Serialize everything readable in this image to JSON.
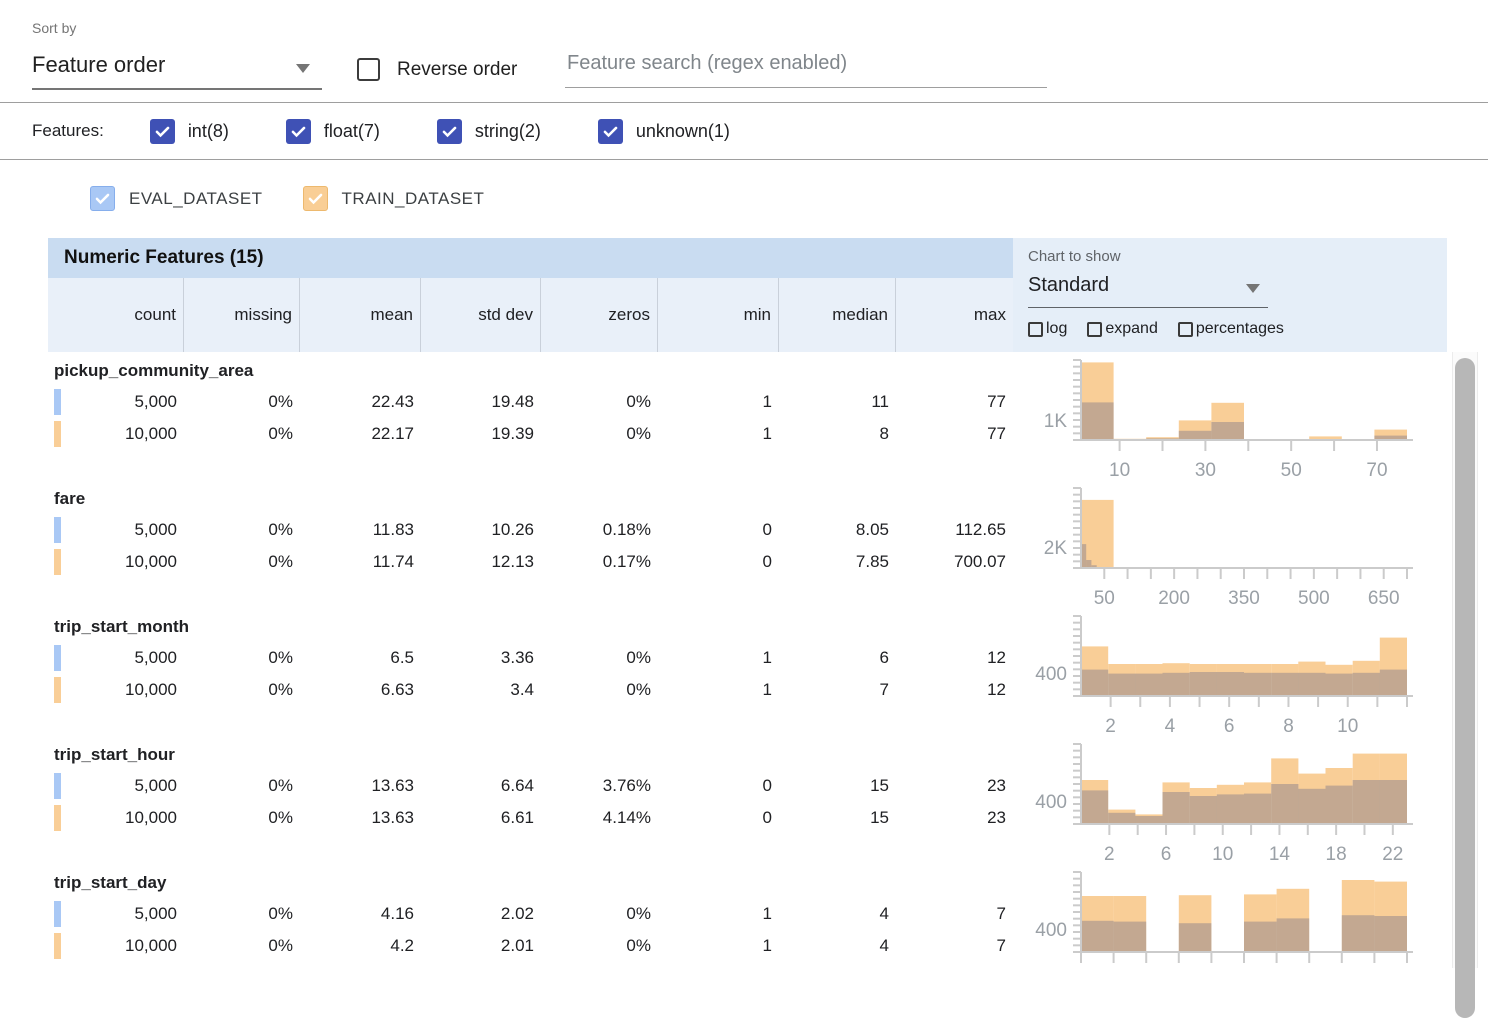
{
  "sort_bar": {
    "sort_by_label": "Sort by",
    "sort_value": "Feature order",
    "reverse_label": "Reverse order",
    "search_placeholder": "Feature search (regex enabled)"
  },
  "features_bar": {
    "label": "Features:",
    "types": [
      {
        "label": "int(8)",
        "checked": true
      },
      {
        "label": "float(7)",
        "checked": true
      },
      {
        "label": "string(2)",
        "checked": true
      },
      {
        "label": "unknown(1)",
        "checked": true
      }
    ]
  },
  "datasets": [
    {
      "name": "EVAL_DATASET",
      "color": "#A9C8F5",
      "checked": true
    },
    {
      "name": "TRAIN_DATASET",
      "color": "#F9CE97",
      "checked": true
    }
  ],
  "table": {
    "title": "Numeric Features (15)",
    "columns": [
      "count",
      "missing",
      "mean",
      "std dev",
      "zeros",
      "min",
      "median",
      "max"
    ]
  },
  "chart_controls": {
    "label": "Chart to show",
    "value": "Standard",
    "checkboxes": [
      {
        "label": "log",
        "checked": false
      },
      {
        "label": "expand",
        "checked": false
      },
      {
        "label": "percentages",
        "checked": false
      }
    ]
  },
  "features": [
    {
      "name": "pickup_community_area",
      "eval": [
        "5,000",
        "0%",
        "22.43",
        "19.48",
        "0%",
        "1",
        "11",
        "77"
      ],
      "train": [
        "10,000",
        "0%",
        "22.17",
        "19.39",
        "0%",
        "1",
        "8",
        "77"
      ]
    },
    {
      "name": "fare",
      "eval": [
        "5,000",
        "0%",
        "11.83",
        "10.26",
        "0.18%",
        "0",
        "8.05",
        "112.65"
      ],
      "train": [
        "10,000",
        "0%",
        "11.74",
        "12.13",
        "0.17%",
        "0",
        "7.85",
        "700.07"
      ]
    },
    {
      "name": "trip_start_month",
      "eval": [
        "5,000",
        "0%",
        "6.5",
        "3.36",
        "0%",
        "1",
        "6",
        "12"
      ],
      "train": [
        "10,000",
        "0%",
        "6.63",
        "3.4",
        "0%",
        "1",
        "7",
        "12"
      ]
    },
    {
      "name": "trip_start_hour",
      "eval": [
        "5,000",
        "0%",
        "13.63",
        "6.64",
        "3.76%",
        "0",
        "15",
        "23"
      ],
      "train": [
        "10,000",
        "0%",
        "13.63",
        "6.61",
        "4.14%",
        "0",
        "15",
        "23"
      ]
    },
    {
      "name": "trip_start_day",
      "eval": [
        "5,000",
        "0%",
        "4.16",
        "2.02",
        "0%",
        "1",
        "4",
        "7"
      ],
      "train": [
        "10,000",
        "0%",
        "4.2",
        "2.01",
        "0%",
        "1",
        "4",
        "7"
      ]
    }
  ],
  "chart_data": [
    {
      "feature": "pickup_community_area",
      "type": "bar",
      "x_range": [
        1,
        77
      ],
      "y_max": 4000,
      "y_axis_label": {
        "text": "1K",
        "value": 1000
      },
      "x_ticks": [
        10,
        20,
        30,
        40,
        50,
        60,
        70
      ],
      "x_tick_labels": [
        [
          10,
          "10"
        ],
        [
          30,
          "30"
        ],
        [
          50,
          "50"
        ],
        [
          70,
          "70"
        ]
      ],
      "series": [
        {
          "name": "TRAIN_DATASET",
          "color": "#F9CE97",
          "bin_start": 1,
          "bin_width": 7.6,
          "counts": [
            3880,
            60,
            140,
            980,
            1860,
            50,
            50,
            180,
            50,
            520
          ]
        },
        {
          "name": "EVAL_DATASET",
          "color": "rgba(128,122,138,0.45)",
          "bin_start": 1,
          "bin_width": 7.6,
          "counts": [
            1880,
            40,
            80,
            460,
            900,
            30,
            20,
            50,
            20,
            220
          ]
        }
      ]
    },
    {
      "feature": "fare",
      "type": "bar",
      "x_range": [
        0,
        700
      ],
      "y_max": 7700,
      "y_axis_label": {
        "text": "2K",
        "value": 2000
      },
      "x_ticks": [
        50,
        100,
        150,
        200,
        250,
        300,
        350,
        400,
        450,
        500,
        550,
        600,
        650,
        700
      ],
      "x_tick_labels": [
        [
          50,
          "50"
        ],
        [
          200,
          "200"
        ],
        [
          350,
          "350"
        ],
        [
          500,
          "500"
        ],
        [
          650,
          "650"
        ]
      ],
      "series": [
        {
          "name": "TRAIN_DATASET",
          "color": "#F9CE97",
          "bin_start": 0,
          "bin_width": 70,
          "counts": [
            6550,
            30,
            30,
            30,
            30,
            30,
            30,
            30,
            30,
            30
          ]
        },
        {
          "name": "EVAL_DATASET",
          "color": "rgba(128,122,138,0.45)",
          "bin_start": 0,
          "bin_width": 11.265,
          "counts": [
            2300,
            770,
            270,
            90,
            45,
            25,
            25,
            25,
            25,
            25
          ]
        }
      ]
    },
    {
      "feature": "trip_start_month",
      "type": "bar",
      "x_range": [
        1,
        12
      ],
      "y_max": 1380,
      "y_axis_label": {
        "text": "400",
        "value": 400
      },
      "x_ticks": [
        2,
        3,
        4,
        5,
        6,
        7,
        8,
        9,
        10,
        11,
        12
      ],
      "x_tick_labels": [
        [
          2,
          "2"
        ],
        [
          4,
          "4"
        ],
        [
          6,
          "6"
        ],
        [
          8,
          "8"
        ],
        [
          10,
          "10"
        ]
      ],
      "series": [
        {
          "name": "TRAIN_DATASET",
          "color": "#F9CE97",
          "bin_start": 1,
          "bin_width": 0.9167,
          "counts": [
            856,
            552,
            552,
            566,
            552,
            552,
            552,
            552,
            593,
            538,
            607,
            1007
          ]
        },
        {
          "name": "EVAL_DATASET",
          "color": "rgba(128,122,138,0.45)",
          "bin_start": 1,
          "bin_width": 0.9167,
          "counts": [
            455,
            386,
            386,
            400,
            414,
            414,
            400,
            400,
            400,
            386,
            400,
            455
          ]
        }
      ]
    },
    {
      "feature": "trip_start_hour",
      "type": "bar",
      "x_range": [
        0,
        23
      ],
      "y_max": 1380,
      "y_axis_label": {
        "text": "400",
        "value": 400
      },
      "x_ticks": [
        2,
        4,
        6,
        8,
        10,
        12,
        14,
        16,
        18,
        20,
        22
      ],
      "x_tick_labels": [
        [
          2,
          "2"
        ],
        [
          6,
          "6"
        ],
        [
          10,
          "10"
        ],
        [
          14,
          "14"
        ],
        [
          18,
          "18"
        ],
        [
          22,
          "22"
        ]
      ],
      "series": [
        {
          "name": "TRAIN_DATASET",
          "color": "#F9CE97",
          "bin_start": 0,
          "bin_width": 1.9167,
          "counts": [
            759,
            248,
            166,
            718,
            621,
            676,
            718,
            1132,
            869,
            966,
            1214,
            1214
          ]
        },
        {
          "name": "EVAL_DATASET",
          "color": "rgba(128,122,138,0.45)",
          "bin_start": 0,
          "bin_width": 1.9167,
          "counts": [
            580,
            193,
            138,
            552,
            483,
            511,
            524,
            690,
            607,
            662,
            759,
            759
          ]
        }
      ]
    },
    {
      "feature": "trip_start_day",
      "type": "bar",
      "x_range": [
        1,
        7
      ],
      "y_max": 1380,
      "y_axis_label": {
        "text": "400",
        "value": 400
      },
      "x_ticks": [
        1,
        1.6,
        2.2,
        2.8,
        3.4,
        4.0,
        4.6,
        5.2,
        5.8,
        6.4,
        7.0
      ],
      "x_tick_labels": [],
      "series": [
        {
          "name": "TRAIN_DATASET",
          "color": "#F9CE97",
          "bin_start": 1,
          "bin_width": 0.6,
          "counts": [
            966,
            966,
            0,
            980,
            0,
            994,
            1090,
            0,
            1242,
            1214
          ]
        },
        {
          "name": "EVAL_DATASET",
          "color": "rgba(128,122,138,0.45)",
          "bin_start": 1,
          "bin_width": 0.6,
          "counts": [
            538,
            524,
            0,
            497,
            0,
            524,
            580,
            0,
            635,
            621
          ]
        }
      ]
    }
  ],
  "colors": {
    "accent_indigo": "#3F51B5",
    "eval": "#A9C8F5",
    "train": "#F9CE97",
    "header_bg": "#C9DCF1",
    "subheader_bg": "#E9F0F9",
    "panel_bg": "#E5EEF8"
  }
}
